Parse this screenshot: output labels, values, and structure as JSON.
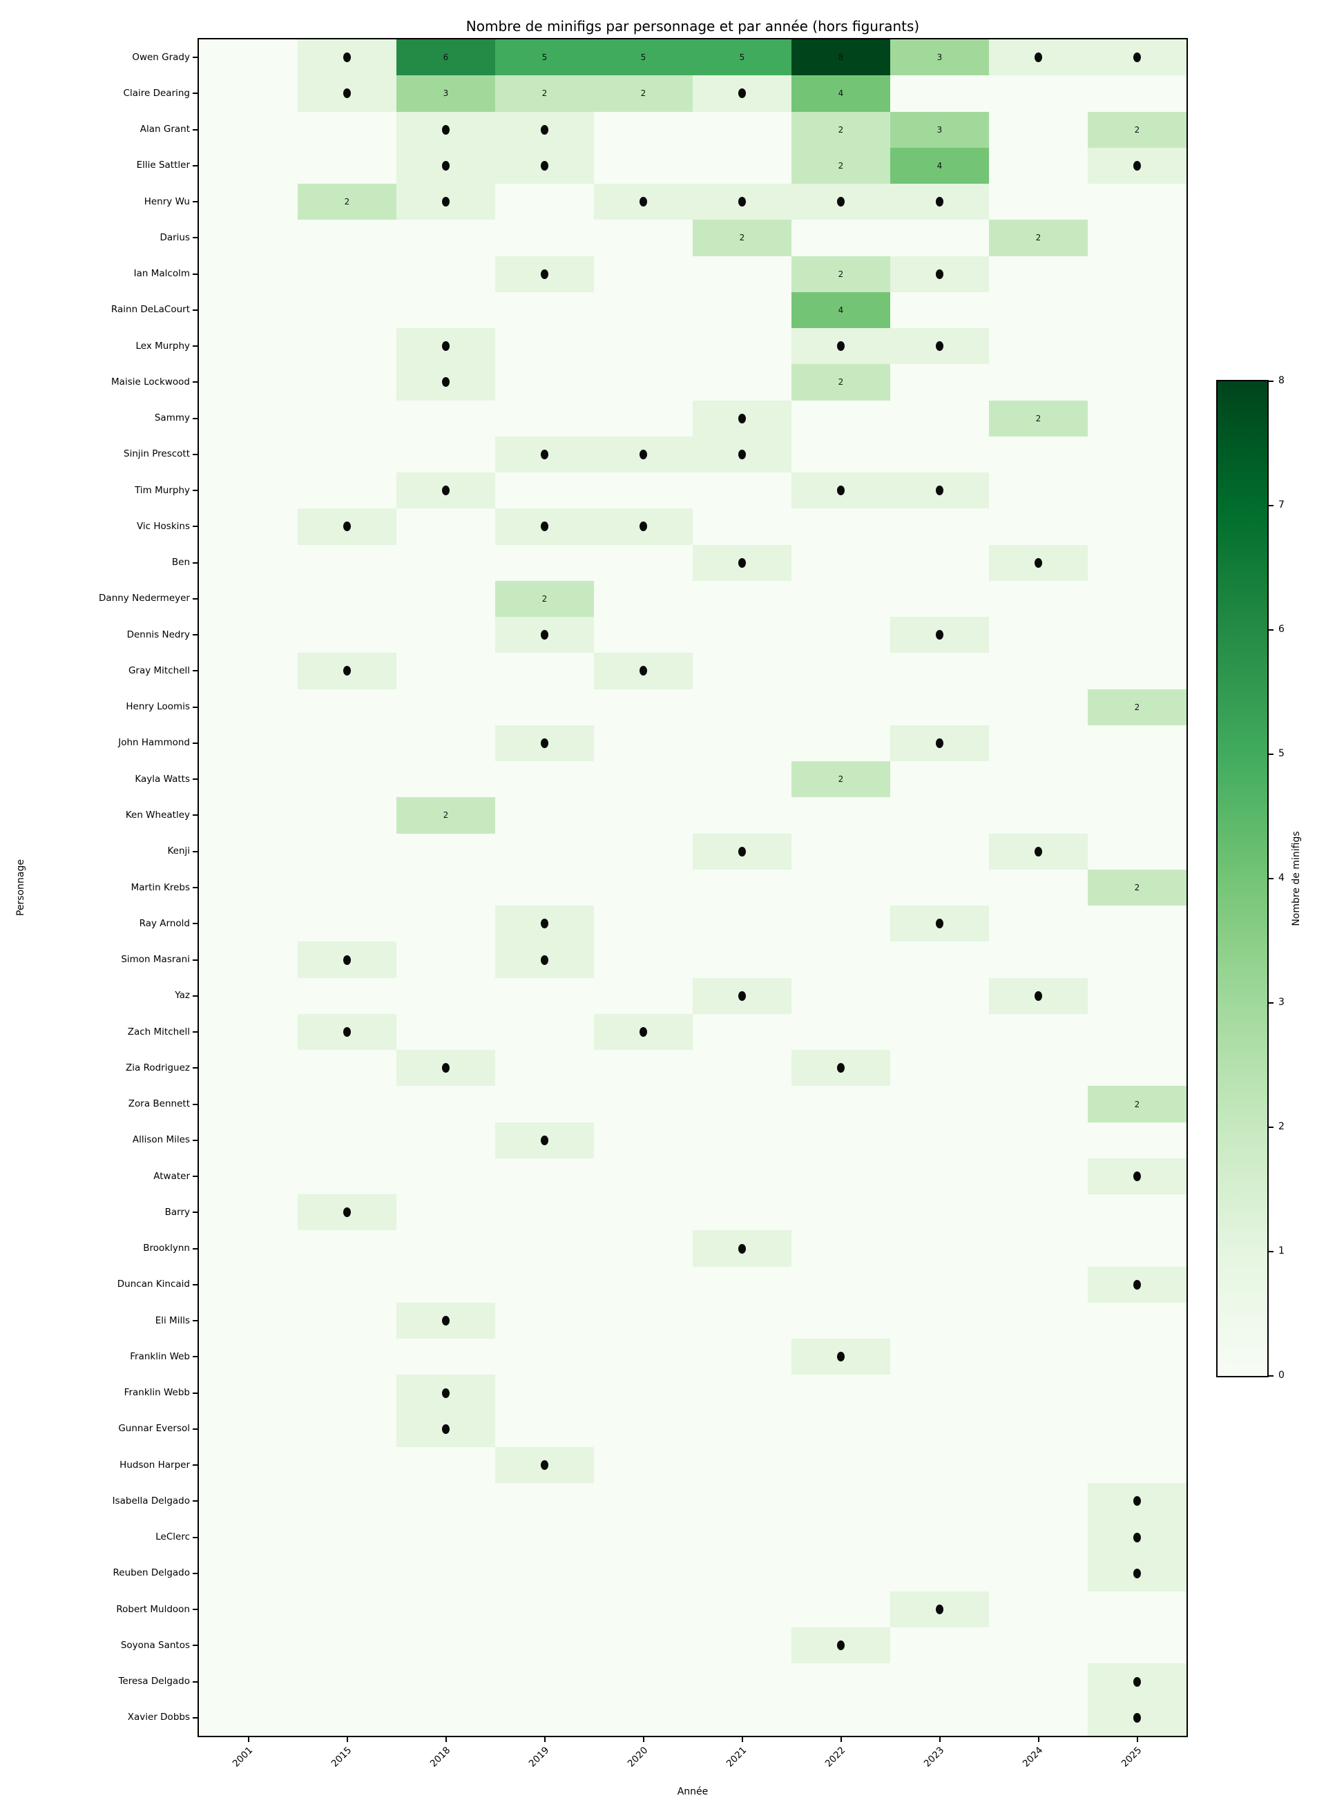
{
  "chart_data": {
    "type": "heatmap",
    "title": "Nombre de minifigs par personnage et par année (hors figurants)",
    "xlabel": "Année",
    "ylabel": "Personnage",
    "columns": [
      "2001",
      "2015",
      "2018",
      "2019",
      "2020",
      "2021",
      "2022",
      "2023",
      "2024",
      "2025"
    ],
    "vmin": 0,
    "vmax": 8,
    "value_display_rule": "value 1 rendered as black dot; values >= 2 rendered as number",
    "value_colors": {
      "0": "#f7fcf5",
      "1": "#e5f5e0",
      "2": "#c7e9c0",
      "3": "#a1d99b",
      "4": "#74c476",
      "5": "#41ab5d",
      "6": "#238b45",
      "7": "#006d2c",
      "8": "#00441b"
    },
    "rows": [
      {
        "label": "Owen Grady",
        "values": [
          0,
          1,
          6,
          5,
          5,
          5,
          8,
          3,
          1,
          1
        ]
      },
      {
        "label": "Claire Dearing",
        "values": [
          0,
          1,
          3,
          2,
          2,
          1,
          4,
          0,
          0,
          0
        ]
      },
      {
        "label": "Alan Grant",
        "values": [
          0,
          0,
          1,
          1,
          0,
          0,
          2,
          3,
          0,
          2
        ]
      },
      {
        "label": "Ellie Sattler",
        "values": [
          0,
          0,
          1,
          1,
          0,
          0,
          2,
          4,
          0,
          1
        ]
      },
      {
        "label": "Henry Wu",
        "values": [
          0,
          2,
          1,
          0,
          1,
          1,
          1,
          1,
          0,
          0
        ]
      },
      {
        "label": "Darius",
        "values": [
          0,
          0,
          0,
          0,
          0,
          2,
          0,
          0,
          2,
          0
        ]
      },
      {
        "label": "Ian Malcolm",
        "values": [
          0,
          0,
          0,
          1,
          0,
          0,
          2,
          1,
          0,
          0
        ]
      },
      {
        "label": "Rainn DeLaCourt",
        "values": [
          0,
          0,
          0,
          0,
          0,
          0,
          4,
          0,
          0,
          0
        ]
      },
      {
        "label": "Lex Murphy",
        "values": [
          0,
          0,
          1,
          0,
          0,
          0,
          1,
          1,
          0,
          0
        ]
      },
      {
        "label": "Maisie Lockwood",
        "values": [
          0,
          0,
          1,
          0,
          0,
          0,
          2,
          0,
          0,
          0
        ]
      },
      {
        "label": "Sammy",
        "values": [
          0,
          0,
          0,
          0,
          0,
          1,
          0,
          0,
          2,
          0
        ]
      },
      {
        "label": "Sinjin Prescott",
        "values": [
          0,
          0,
          0,
          1,
          1,
          1,
          0,
          0,
          0,
          0
        ]
      },
      {
        "label": "Tim Murphy",
        "values": [
          0,
          0,
          1,
          0,
          0,
          0,
          1,
          1,
          0,
          0
        ]
      },
      {
        "label": "Vic Hoskins",
        "values": [
          0,
          1,
          0,
          1,
          1,
          0,
          0,
          0,
          0,
          0
        ]
      },
      {
        "label": "Ben",
        "values": [
          0,
          0,
          0,
          0,
          0,
          1,
          0,
          0,
          1,
          0
        ]
      },
      {
        "label": "Danny Nedermeyer",
        "values": [
          0,
          0,
          0,
          2,
          0,
          0,
          0,
          0,
          0,
          0
        ]
      },
      {
        "label": "Dennis Nedry",
        "values": [
          0,
          0,
          0,
          1,
          0,
          0,
          0,
          1,
          0,
          0
        ]
      },
      {
        "label": "Gray Mitchell",
        "values": [
          0,
          1,
          0,
          0,
          1,
          0,
          0,
          0,
          0,
          0
        ]
      },
      {
        "label": "Henry Loomis",
        "values": [
          0,
          0,
          0,
          0,
          0,
          0,
          0,
          0,
          0,
          2
        ]
      },
      {
        "label": "John Hammond",
        "values": [
          0,
          0,
          0,
          1,
          0,
          0,
          0,
          1,
          0,
          0
        ]
      },
      {
        "label": "Kayla Watts",
        "values": [
          0,
          0,
          0,
          0,
          0,
          0,
          2,
          0,
          0,
          0
        ]
      },
      {
        "label": "Ken Wheatley",
        "values": [
          0,
          0,
          2,
          0,
          0,
          0,
          0,
          0,
          0,
          0
        ]
      },
      {
        "label": "Kenji",
        "values": [
          0,
          0,
          0,
          0,
          0,
          1,
          0,
          0,
          1,
          0
        ]
      },
      {
        "label": "Martin Krebs",
        "values": [
          0,
          0,
          0,
          0,
          0,
          0,
          0,
          0,
          0,
          2
        ]
      },
      {
        "label": "Ray Arnold",
        "values": [
          0,
          0,
          0,
          1,
          0,
          0,
          0,
          1,
          0,
          0
        ]
      },
      {
        "label": "Simon Masrani",
        "values": [
          0,
          1,
          0,
          1,
          0,
          0,
          0,
          0,
          0,
          0
        ]
      },
      {
        "label": "Yaz",
        "values": [
          0,
          0,
          0,
          0,
          0,
          1,
          0,
          0,
          1,
          0
        ]
      },
      {
        "label": "Zach Mitchell",
        "values": [
          0,
          1,
          0,
          0,
          1,
          0,
          0,
          0,
          0,
          0
        ]
      },
      {
        "label": "Zia Rodriguez",
        "values": [
          0,
          0,
          1,
          0,
          0,
          0,
          1,
          0,
          0,
          0
        ]
      },
      {
        "label": "Zora Bennett",
        "values": [
          0,
          0,
          0,
          0,
          0,
          0,
          0,
          0,
          0,
          2
        ]
      },
      {
        "label": "Allison Miles",
        "values": [
          0,
          0,
          0,
          1,
          0,
          0,
          0,
          0,
          0,
          0
        ]
      },
      {
        "label": "Atwater",
        "values": [
          0,
          0,
          0,
          0,
          0,
          0,
          0,
          0,
          0,
          1
        ]
      },
      {
        "label": "Barry",
        "values": [
          0,
          1,
          0,
          0,
          0,
          0,
          0,
          0,
          0,
          0
        ]
      },
      {
        "label": "Brooklynn",
        "values": [
          0,
          0,
          0,
          0,
          0,
          1,
          0,
          0,
          0,
          0
        ]
      },
      {
        "label": "Duncan Kincaid",
        "values": [
          0,
          0,
          0,
          0,
          0,
          0,
          0,
          0,
          0,
          1
        ]
      },
      {
        "label": "Eli Mills",
        "values": [
          0,
          0,
          1,
          0,
          0,
          0,
          0,
          0,
          0,
          0
        ]
      },
      {
        "label": "Franklin Web",
        "values": [
          0,
          0,
          0,
          0,
          0,
          0,
          1,
          0,
          0,
          0
        ]
      },
      {
        "label": "Franklin Webb",
        "values": [
          0,
          0,
          1,
          0,
          0,
          0,
          0,
          0,
          0,
          0
        ]
      },
      {
        "label": "Gunnar Eversol",
        "values": [
          0,
          0,
          1,
          0,
          0,
          0,
          0,
          0,
          0,
          0
        ]
      },
      {
        "label": "Hudson Harper",
        "values": [
          0,
          0,
          0,
          1,
          0,
          0,
          0,
          0,
          0,
          0
        ]
      },
      {
        "label": "Isabella Delgado",
        "values": [
          0,
          0,
          0,
          0,
          0,
          0,
          0,
          0,
          0,
          1
        ]
      },
      {
        "label": "LeClerc",
        "values": [
          0,
          0,
          0,
          0,
          0,
          0,
          0,
          0,
          0,
          1
        ]
      },
      {
        "label": "Reuben Delgado",
        "values": [
          0,
          0,
          0,
          0,
          0,
          0,
          0,
          0,
          0,
          1
        ]
      },
      {
        "label": "Robert Muldoon",
        "values": [
          0,
          0,
          0,
          0,
          0,
          0,
          0,
          1,
          0,
          0
        ]
      },
      {
        "label": "Soyona Santos",
        "values": [
          0,
          0,
          0,
          0,
          0,
          0,
          1,
          0,
          0,
          0
        ]
      },
      {
        "label": "Teresa Delgado",
        "values": [
          0,
          0,
          0,
          0,
          0,
          0,
          0,
          0,
          0,
          1
        ]
      },
      {
        "label": "Xavier Dobbs",
        "values": [
          0,
          0,
          0,
          0,
          0,
          0,
          0,
          0,
          0,
          1
        ]
      }
    ],
    "colorbar": {
      "label": "Nombre de minifigs",
      "ticks": [
        0,
        1,
        2,
        3,
        4,
        5,
        6,
        7,
        8
      ],
      "gradient_bottom_to_top": [
        "#f7fcf5",
        "#e5f5e0",
        "#c7e9c0",
        "#a1d99b",
        "#74c476",
        "#41ab5d",
        "#238b45",
        "#006d2c",
        "#00441b"
      ]
    },
    "legend_position": "right-colorbar",
    "grid": false
  }
}
